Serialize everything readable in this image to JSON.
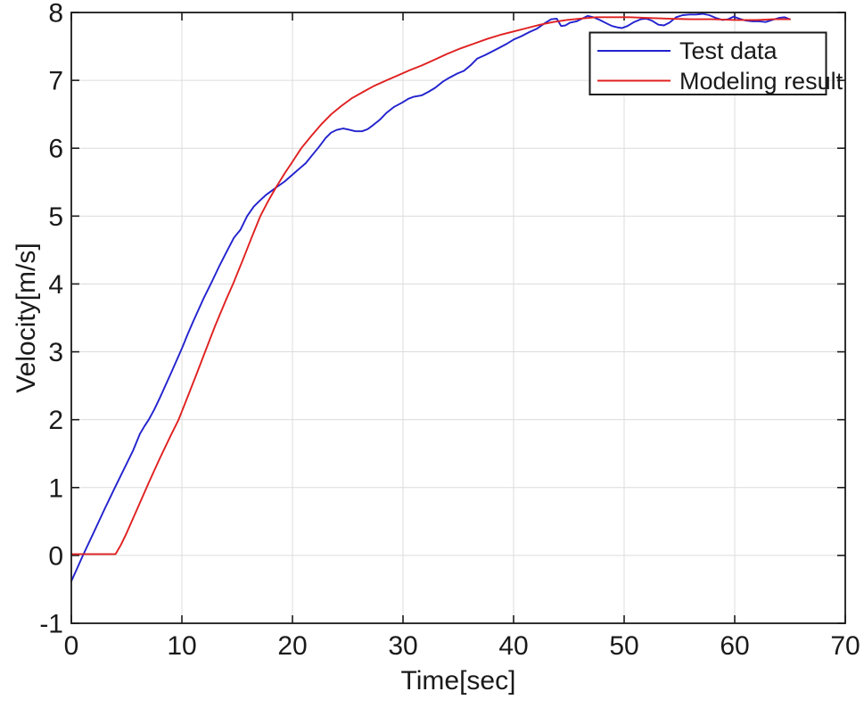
{
  "chart_data": {
    "type": "line",
    "title": "",
    "xlabel": "Time[sec]",
    "ylabel": "Velocity[m/s]",
    "xlim": [
      0,
      70
    ],
    "ylim": [
      -1,
      8
    ],
    "xticks": [
      0,
      10,
      20,
      30,
      40,
      50,
      60,
      70
    ],
    "yticks": [
      -1,
      0,
      1,
      2,
      3,
      4,
      5,
      6,
      7,
      8
    ],
    "grid": true,
    "legend_position": "top-right",
    "colors": {
      "axis": "#1a1a1a",
      "grid": "#dcdcdc",
      "text": "#1a1a1a",
      "background": "#ffffff"
    },
    "series": [
      {
        "name": "Test data",
        "color": "#2222CE",
        "points": [
          [
            0,
            -0.38
          ],
          [
            0.5,
            -0.2
          ],
          [
            1.05,
            0
          ],
          [
            2,
            0.33
          ],
          [
            3,
            0.68
          ],
          [
            4,
            1.02
          ],
          [
            5,
            1.35
          ],
          [
            5.6,
            1.55
          ],
          [
            6.2,
            1.79
          ],
          [
            6.6,
            1.9
          ],
          [
            7,
            2.0
          ],
          [
            7.5,
            2.15
          ],
          [
            8,
            2.32
          ],
          [
            9,
            2.68
          ],
          [
            10,
            3.05
          ],
          [
            10.5,
            3.25
          ],
          [
            11,
            3.44
          ],
          [
            11.5,
            3.62
          ],
          [
            12,
            3.8
          ],
          [
            12.7,
            4.03
          ],
          [
            13.4,
            4.27
          ],
          [
            14,
            4.46
          ],
          [
            14.7,
            4.68
          ],
          [
            15.3,
            4.8
          ],
          [
            15.9,
            5.0
          ],
          [
            16.5,
            5.14
          ],
          [
            17,
            5.22
          ],
          [
            17.6,
            5.31
          ],
          [
            18.1,
            5.37
          ],
          [
            18.6,
            5.43
          ],
          [
            19.3,
            5.51
          ],
          [
            20,
            5.61
          ],
          [
            20.7,
            5.71
          ],
          [
            21.2,
            5.78
          ],
          [
            21.8,
            5.9
          ],
          [
            22.4,
            6.02
          ],
          [
            23,
            6.15
          ],
          [
            23.5,
            6.23
          ],
          [
            24,
            6.27
          ],
          [
            24.6,
            6.29
          ],
          [
            25.2,
            6.27
          ],
          [
            25.7,
            6.25
          ],
          [
            26.3,
            6.25
          ],
          [
            26.8,
            6.28
          ],
          [
            27.3,
            6.34
          ],
          [
            27.9,
            6.42
          ],
          [
            28.5,
            6.52
          ],
          [
            29.2,
            6.61
          ],
          [
            29.9,
            6.67
          ],
          [
            30.5,
            6.73
          ],
          [
            31,
            6.76
          ],
          [
            31.7,
            6.78
          ],
          [
            32.3,
            6.83
          ],
          [
            32.9,
            6.89
          ],
          [
            33.6,
            6.98
          ],
          [
            34.2,
            7.04
          ],
          [
            34.9,
            7.1
          ],
          [
            35.5,
            7.14
          ],
          [
            36.1,
            7.22
          ],
          [
            36.7,
            7.32
          ],
          [
            37.4,
            7.37
          ],
          [
            38,
            7.42
          ],
          [
            38.7,
            7.48
          ],
          [
            39.4,
            7.54
          ],
          [
            40,
            7.6
          ],
          [
            40.7,
            7.65
          ],
          [
            41.4,
            7.71
          ],
          [
            42.1,
            7.76
          ],
          [
            42.8,
            7.84
          ],
          [
            43.4,
            7.9
          ],
          [
            43.9,
            7.91
          ],
          [
            44.3,
            7.8
          ],
          [
            44.7,
            7.81
          ],
          [
            45.1,
            7.85
          ],
          [
            45.7,
            7.87
          ],
          [
            46.2,
            7.91
          ],
          [
            46.7,
            7.95
          ],
          [
            47.2,
            7.93
          ],
          [
            47.8,
            7.89
          ],
          [
            48.4,
            7.84
          ],
          [
            48.9,
            7.8
          ],
          [
            49.4,
            7.78
          ],
          [
            49.8,
            7.77
          ],
          [
            50.3,
            7.8
          ],
          [
            50.9,
            7.86
          ],
          [
            51.5,
            7.9
          ],
          [
            52,
            7.91
          ],
          [
            52.5,
            7.88
          ],
          [
            53.1,
            7.82
          ],
          [
            53.6,
            7.81
          ],
          [
            54.1,
            7.85
          ],
          [
            54.7,
            7.93
          ],
          [
            55.3,
            7.96
          ],
          [
            55.9,
            7.97
          ],
          [
            56.5,
            7.97
          ],
          [
            57.1,
            7.98
          ],
          [
            57.7,
            7.96
          ],
          [
            58.3,
            7.92
          ],
          [
            58.9,
            7.89
          ],
          [
            59.4,
            7.9
          ],
          [
            59.9,
            7.94
          ],
          [
            60.4,
            7.91
          ],
          [
            61,
            7.88
          ],
          [
            61.6,
            7.87
          ],
          [
            62.2,
            7.87
          ],
          [
            62.8,
            7.86
          ],
          [
            63.4,
            7.89
          ],
          [
            64,
            7.92
          ],
          [
            64.5,
            7.93
          ],
          [
            65,
            7.9
          ]
        ]
      },
      {
        "name": "Modeling result",
        "color": "#E02020",
        "points": [
          [
            0,
            0.02
          ],
          [
            4,
            0.02
          ],
          [
            4.5,
            0.16
          ],
          [
            5,
            0.33
          ],
          [
            6,
            0.7
          ],
          [
            7,
            1.07
          ],
          [
            8,
            1.43
          ],
          [
            9,
            1.77
          ],
          [
            9.7,
            2.0
          ],
          [
            10.5,
            2.33
          ],
          [
            11.3,
            2.66
          ],
          [
            12.1,
            3.0
          ],
          [
            13,
            3.38
          ],
          [
            14,
            3.77
          ],
          [
            14.7,
            4.03
          ],
          [
            15.5,
            4.35
          ],
          [
            16.3,
            4.68
          ],
          [
            17.1,
            5.0
          ],
          [
            17.8,
            5.22
          ],
          [
            18.5,
            5.42
          ],
          [
            19.3,
            5.63
          ],
          [
            20,
            5.8
          ],
          [
            20.8,
            6.0
          ],
          [
            21.7,
            6.18
          ],
          [
            22.6,
            6.35
          ],
          [
            23.5,
            6.5
          ],
          [
            24.4,
            6.62
          ],
          [
            25.4,
            6.74
          ],
          [
            26.4,
            6.83
          ],
          [
            27.4,
            6.92
          ],
          [
            28.5,
            7.0
          ],
          [
            29.5,
            7.07
          ],
          [
            30.6,
            7.15
          ],
          [
            31.7,
            7.22
          ],
          [
            32.8,
            7.3
          ],
          [
            34,
            7.39
          ],
          [
            35.2,
            7.47
          ],
          [
            36.4,
            7.54
          ],
          [
            37.6,
            7.61
          ],
          [
            38.8,
            7.67
          ],
          [
            40,
            7.72
          ],
          [
            41.2,
            7.77
          ],
          [
            42.4,
            7.82
          ],
          [
            43.6,
            7.86
          ],
          [
            44.8,
            7.89
          ],
          [
            46,
            7.91
          ],
          [
            47.5,
            7.93
          ],
          [
            49,
            7.93
          ],
          [
            50.5,
            7.93
          ],
          [
            52,
            7.92
          ],
          [
            54,
            7.91
          ],
          [
            56,
            7.9
          ],
          [
            58,
            7.9
          ],
          [
            60,
            7.89
          ],
          [
            62,
            7.89
          ],
          [
            63.5,
            7.9
          ],
          [
            65,
            7.9
          ]
        ]
      }
    ]
  },
  "legend": {
    "items": [
      "Test data",
      "Modeling result"
    ]
  }
}
